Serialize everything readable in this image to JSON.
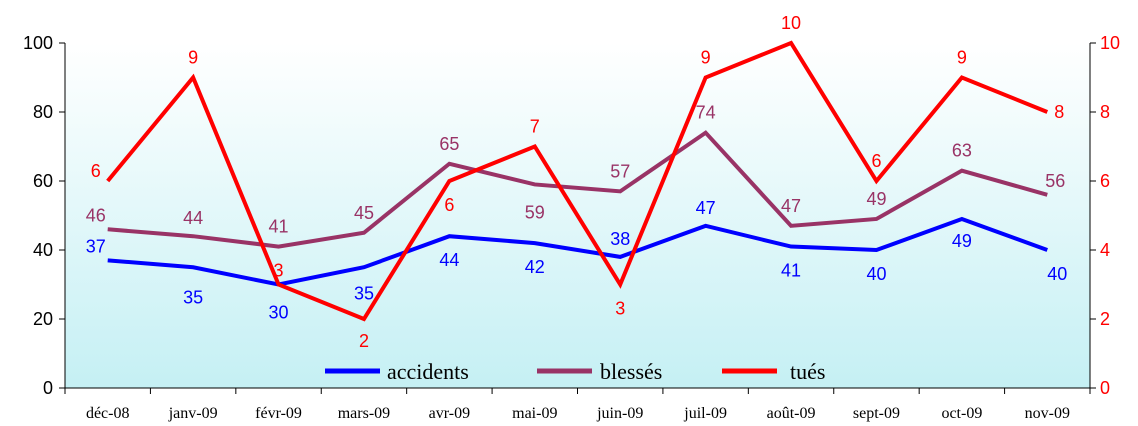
{
  "chart_data": {
    "type": "line",
    "categories": [
      "déc-08",
      "janv-09",
      "févr-09",
      "mars-09",
      "avr-09",
      "mai-09",
      "juin-09",
      "juil-09",
      "août-09",
      "sept-09",
      "oct-09",
      "nov-09"
    ],
    "left_axis": {
      "ylim": [
        0,
        100
      ],
      "ticks": [
        "0",
        "20",
        "40",
        "60",
        "80",
        "100"
      ]
    },
    "right_axis": {
      "ylim": [
        0,
        10
      ],
      "ticks": [
        "0",
        "2",
        "4",
        "6",
        "8",
        "10"
      ]
    },
    "series": [
      {
        "name": "accidents",
        "axis": "left",
        "color": "#0000ff",
        "values": [
          37,
          35,
          30,
          35,
          44,
          42,
          38,
          47,
          41,
          40,
          49,
          40
        ],
        "labels": [
          "37",
          "35",
          "30",
          "35",
          "44",
          "42",
          "38",
          "47",
          "41",
          "40",
          "49",
          "40"
        ]
      },
      {
        "name": "blessés",
        "axis": "left",
        "color": "#993366",
        "values": [
          46,
          44,
          41,
          45,
          65,
          59,
          57,
          74,
          47,
          49,
          63,
          56
        ],
        "labels": [
          "46",
          "44",
          "41",
          "45",
          "65",
          "59",
          "57",
          "74",
          "47",
          "49",
          "63",
          "56"
        ]
      },
      {
        "name": "tués",
        "axis": "right",
        "color": "#ff0000",
        "values": [
          6,
          9,
          3,
          2,
          6,
          7,
          3,
          9,
          10,
          6,
          9,
          8
        ],
        "labels": [
          "6",
          "9",
          "3",
          "2",
          "6",
          "7",
          "3",
          "9",
          "10",
          "6",
          "9",
          "8"
        ]
      }
    ],
    "legend": "bottom-center",
    "grid": false,
    "background": "gradient white to light cyan"
  }
}
